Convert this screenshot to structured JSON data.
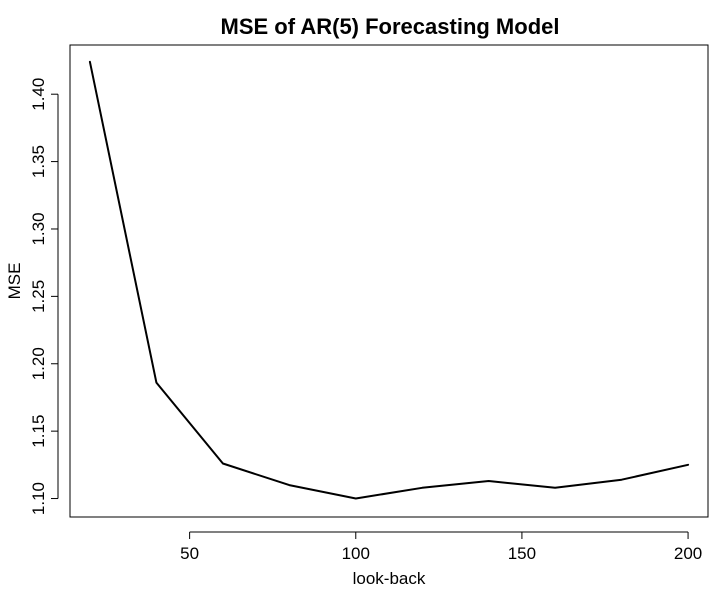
{
  "chart_data": {
    "type": "line",
    "title": "MSE of AR(5) Forecasting Model",
    "xlabel": "look-back",
    "ylabel": "MSE",
    "x_ticks": [
      50,
      100,
      150,
      200
    ],
    "y_ticks": [
      1.1,
      1.15,
      1.2,
      1.25,
      1.3,
      1.35,
      1.4
    ],
    "y_tick_labels": [
      "1.10",
      "1.15",
      "1.20",
      "1.25",
      "1.30",
      "1.35",
      "1.40"
    ],
    "xlim": [
      14,
      206
    ],
    "ylim": [
      1.0863,
      1.4365
    ],
    "series": [
      {
        "x": [
          20,
          40,
          60,
          80,
          100,
          120,
          140,
          160,
          180,
          200
        ],
        "y": [
          1.424,
          1.186,
          1.126,
          1.11,
          1.1,
          1.108,
          1.113,
          1.108,
          1.114,
          1.125
        ]
      }
    ],
    "grid": false,
    "colors": {
      "line": "#000000",
      "axis": "#000000",
      "background": "#ffffff"
    }
  }
}
